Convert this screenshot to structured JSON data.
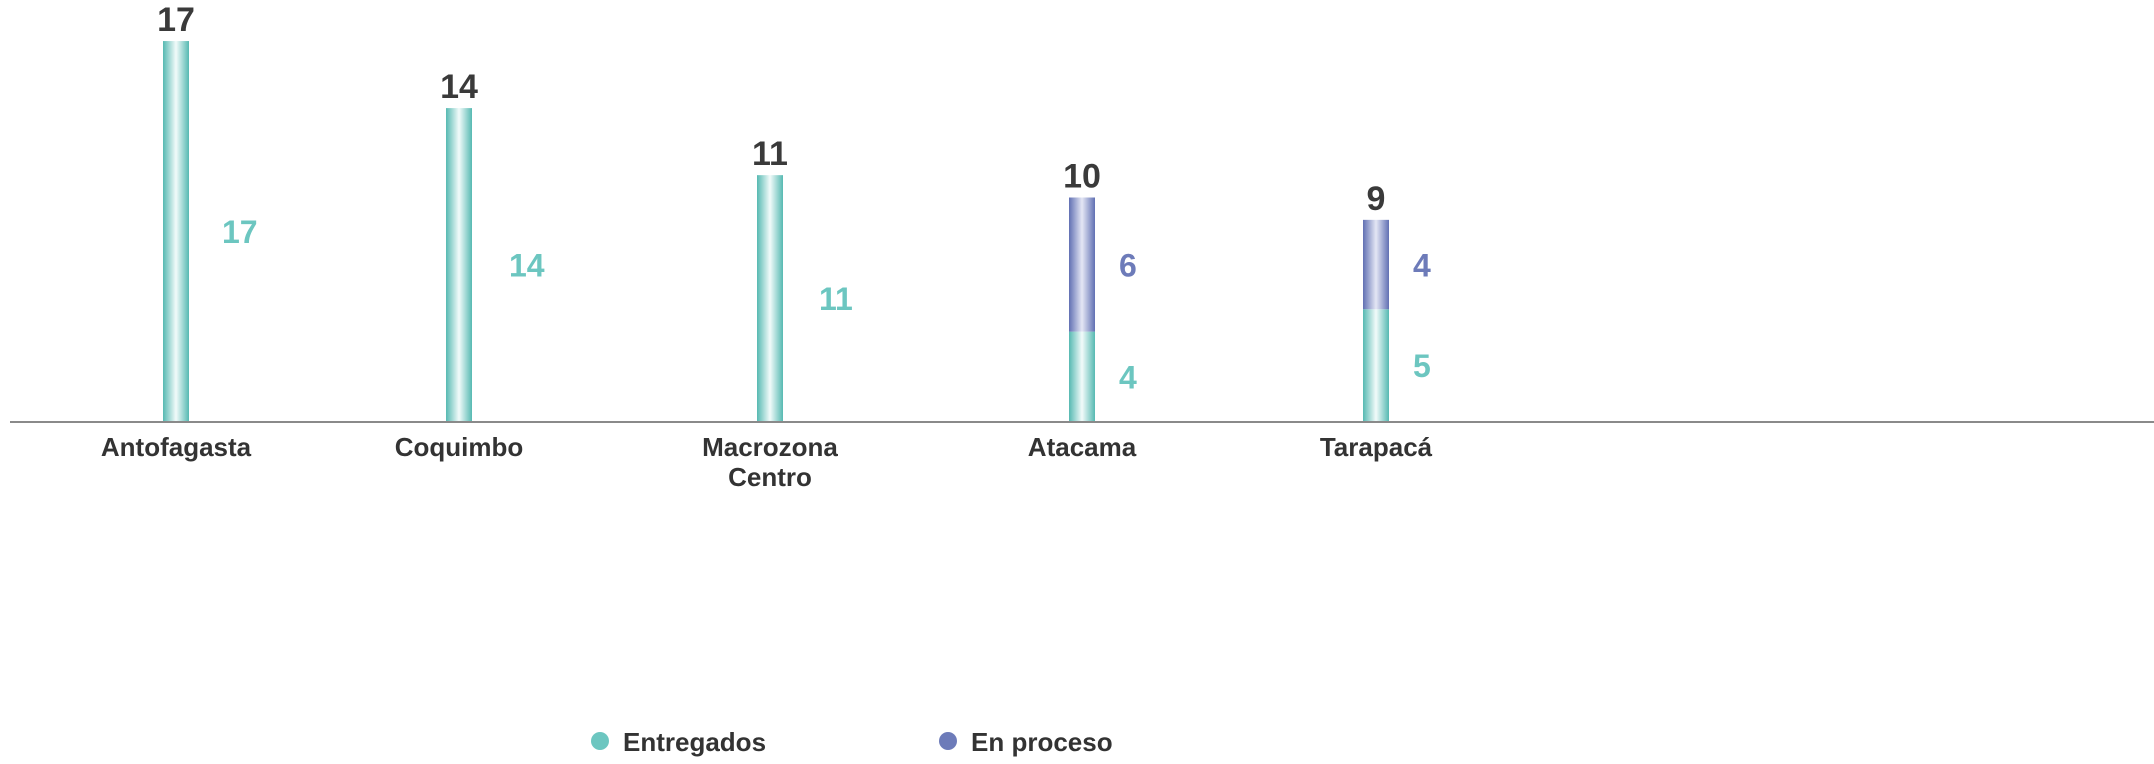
{
  "chart_data": {
    "type": "bar",
    "stacked": true,
    "categories": [
      [
        "Antofagasta"
      ],
      [
        "Coquimbo"
      ],
      [
        "Macrozona",
        "Centro"
      ],
      [
        "Atacama"
      ],
      [
        "Tarapacá"
      ]
    ],
    "series": [
      {
        "name": "Entregados",
        "values": [
          17,
          14,
          11,
          4,
          5
        ],
        "color": "#6cc6c0"
      },
      {
        "name": "En proceso",
        "values": [
          0,
          0,
          0,
          6,
          4
        ],
        "color": "#6d7bb9"
      }
    ],
    "totals": [
      17,
      14,
      11,
      10,
      9
    ],
    "legend_position": "bottom-center",
    "grid": false
  }
}
